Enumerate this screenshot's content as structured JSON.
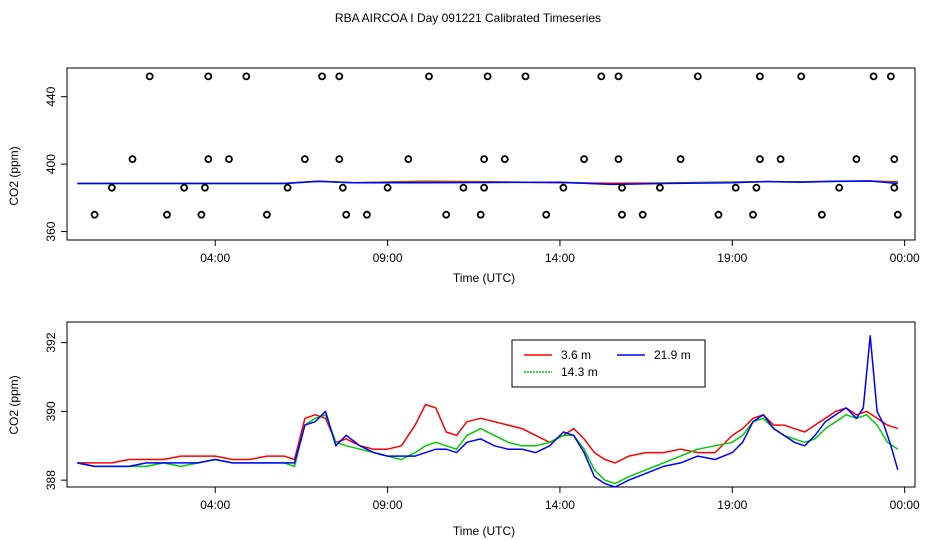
{
  "title": "RBA AIRCOA I  Day 091221  Calibrated Timeseries",
  "chart_data": [
    {
      "type": "scatter",
      "title": "",
      "xlabel": "Time (UTC)",
      "ylabel": "CO2 (ppm)",
      "xlim": [
        -0.3,
        24.3
      ],
      "ylim": [
        355,
        457
      ],
      "xticks": [
        {
          "v": 4,
          "label": "04:00"
        },
        {
          "v": 9,
          "label": "09:00"
        },
        {
          "v": 14,
          "label": "14:00"
        },
        {
          "v": 19,
          "label": "19:00"
        },
        {
          "v": 24,
          "label": "00:00"
        }
      ],
      "yticks": [
        {
          "v": 360,
          "label": "360"
        },
        {
          "v": 400,
          "label": "400"
        },
        {
          "v": 440,
          "label": "440"
        }
      ],
      "calibration_points": [
        [
          0.5,
          370
        ],
        [
          1.0,
          386
        ],
        [
          1.6,
          403
        ],
        [
          2.1,
          452
        ],
        [
          2.6,
          370
        ],
        [
          3.1,
          386
        ],
        [
          3.6,
          370
        ],
        [
          3.7,
          386
        ],
        [
          3.8,
          403
        ],
        [
          3.8,
          452
        ],
        [
          4.4,
          403
        ],
        [
          4.9,
          452
        ],
        [
          5.5,
          370
        ],
        [
          6.1,
          386
        ],
        [
          6.6,
          403
        ],
        [
          7.1,
          452
        ],
        [
          7.6,
          403
        ],
        [
          7.6,
          452
        ],
        [
          7.7,
          386
        ],
        [
          7.8,
          370
        ],
        [
          8.4,
          370
        ],
        [
          9.0,
          386
        ],
        [
          9.6,
          403
        ],
        [
          10.2,
          452
        ],
        [
          10.7,
          370
        ],
        [
          11.2,
          386
        ],
        [
          11.7,
          370
        ],
        [
          11.8,
          386
        ],
        [
          11.8,
          403
        ],
        [
          11.9,
          452
        ],
        [
          12.4,
          403
        ],
        [
          13.0,
          452
        ],
        [
          13.6,
          370
        ],
        [
          14.1,
          386
        ],
        [
          14.7,
          403
        ],
        [
          15.2,
          452
        ],
        [
          15.7,
          452
        ],
        [
          15.7,
          403
        ],
        [
          15.8,
          386
        ],
        [
          15.8,
          370
        ],
        [
          16.4,
          370
        ],
        [
          16.9,
          386
        ],
        [
          17.5,
          403
        ],
        [
          18.0,
          452
        ],
        [
          18.6,
          370
        ],
        [
          19.1,
          386
        ],
        [
          19.6,
          370
        ],
        [
          19.7,
          386
        ],
        [
          19.8,
          403
        ],
        [
          19.8,
          452
        ],
        [
          20.4,
          403
        ],
        [
          21.0,
          452
        ],
        [
          21.6,
          370
        ],
        [
          22.1,
          386
        ],
        [
          22.6,
          403
        ],
        [
          23.1,
          452
        ],
        [
          23.6,
          452
        ],
        [
          23.7,
          403
        ],
        [
          23.7,
          386
        ],
        [
          23.8,
          370
        ]
      ],
      "series": [
        {
          "name": "3.6 m",
          "color": "#ff0000",
          "x": [
            0,
            6,
            7,
            8,
            10,
            12,
            14,
            15.5,
            17,
            19,
            20,
            21,
            22,
            23,
            23.8
          ],
          "values": [
            388.6,
            388.6,
            389.8,
            389.0,
            389.8,
            389.6,
            389.0,
            388.6,
            388.8,
            389.4,
            389.6,
            389.5,
            389.8,
            390.0,
            389.5
          ]
        },
        {
          "name": "14.3 m",
          "color": "#00cc00",
          "x": [
            0,
            6,
            7,
            8,
            10,
            12,
            14,
            15.5,
            17,
            19,
            20,
            21,
            22,
            23,
            23.8
          ],
          "values": [
            388.5,
            388.5,
            389.7,
            388.9,
            389.3,
            389.3,
            389.2,
            388.0,
            388.6,
            389.2,
            389.6,
            389.4,
            389.7,
            389.9,
            389.0
          ]
        },
        {
          "name": "21.9 m",
          "color": "#0000ff",
          "x": [
            0,
            6,
            7,
            8,
            10,
            12,
            14,
            15.5,
            17,
            19,
            20,
            21,
            22,
            23,
            23.8
          ],
          "values": [
            388.5,
            388.5,
            389.8,
            388.9,
            389.0,
            389.1,
            389.3,
            388.0,
            388.5,
            389.0,
            389.7,
            389.2,
            389.8,
            390.0,
            388.5
          ]
        }
      ]
    },
    {
      "type": "line",
      "title": "",
      "xlabel": "Time (UTC)",
      "ylabel": "CO2 (ppm)",
      "xlim": [
        -0.3,
        24.3
      ],
      "ylim": [
        387.8,
        392.6
      ],
      "xticks": [
        {
          "v": 4,
          "label": "04:00"
        },
        {
          "v": 9,
          "label": "09:00"
        },
        {
          "v": 14,
          "label": "14:00"
        },
        {
          "v": 19,
          "label": "19:00"
        },
        {
          "v": 24,
          "label": "00:00"
        }
      ],
      "yticks": [
        {
          "v": 388,
          "label": "388"
        },
        {
          "v": 390,
          "label": "390"
        },
        {
          "v": 392,
          "label": "392"
        }
      ],
      "legend": {
        "position": "top-center",
        "entries": [
          "3.6 m",
          "21.9 m",
          "14.3 m"
        ]
      },
      "series": [
        {
          "name": "3.6 m",
          "color": "#ff0000",
          "x": [
            0.0,
            0.5,
            1.0,
            1.5,
            2.0,
            2.5,
            3.0,
            3.5,
            4.0,
            4.5,
            5.0,
            5.5,
            6.0,
            6.3,
            6.6,
            6.9,
            7.2,
            7.5,
            7.8,
            8.2,
            8.6,
            9.0,
            9.4,
            9.8,
            10.1,
            10.4,
            10.7,
            11.0,
            11.3,
            11.7,
            12.1,
            12.5,
            12.9,
            13.3,
            13.7,
            14.1,
            14.4,
            14.7,
            15.0,
            15.3,
            15.6,
            16.0,
            16.5,
            17.0,
            17.5,
            18.0,
            18.5,
            19.0,
            19.3,
            19.6,
            19.9,
            20.2,
            20.5,
            20.8,
            21.1,
            21.4,
            21.7,
            22.0,
            22.3,
            22.6,
            22.9,
            23.2,
            23.5,
            23.8
          ],
          "values": [
            388.5,
            388.5,
            388.5,
            388.6,
            388.6,
            388.6,
            388.7,
            388.7,
            388.7,
            388.6,
            388.6,
            388.7,
            388.7,
            388.6,
            389.8,
            389.9,
            389.8,
            389.1,
            389.2,
            389.0,
            388.9,
            388.9,
            389.0,
            389.6,
            390.2,
            390.1,
            389.4,
            389.3,
            389.7,
            389.8,
            389.7,
            389.6,
            389.5,
            389.3,
            389.1,
            389.3,
            389.5,
            389.2,
            388.8,
            388.6,
            388.5,
            388.7,
            388.8,
            388.8,
            388.9,
            388.8,
            388.8,
            389.3,
            389.5,
            389.8,
            389.9,
            389.6,
            389.6,
            389.5,
            389.4,
            389.6,
            389.8,
            390.0,
            390.1,
            389.9,
            390.0,
            389.8,
            389.6,
            389.5
          ]
        },
        {
          "name": "14.3 m",
          "color": "#00cc00",
          "x": [
            0.0,
            0.5,
            1.0,
            1.5,
            2.0,
            2.5,
            3.0,
            3.5,
            4.0,
            4.5,
            5.0,
            5.5,
            6.0,
            6.3,
            6.6,
            6.9,
            7.2,
            7.5,
            7.8,
            8.2,
            8.6,
            9.0,
            9.4,
            9.8,
            10.1,
            10.4,
            10.7,
            11.0,
            11.3,
            11.7,
            12.1,
            12.5,
            12.9,
            13.3,
            13.7,
            14.1,
            14.4,
            14.7,
            15.0,
            15.3,
            15.6,
            16.0,
            16.5,
            17.0,
            17.5,
            18.0,
            18.5,
            19.0,
            19.3,
            19.6,
            19.9,
            20.2,
            20.5,
            20.8,
            21.1,
            21.4,
            21.7,
            22.0,
            22.3,
            22.6,
            22.9,
            23.2,
            23.5,
            23.8
          ],
          "values": [
            388.5,
            388.4,
            388.4,
            388.4,
            388.4,
            388.5,
            388.4,
            388.5,
            388.6,
            388.5,
            388.5,
            388.5,
            388.5,
            388.4,
            389.6,
            389.8,
            389.9,
            389.1,
            389.0,
            388.9,
            388.8,
            388.7,
            388.6,
            388.8,
            389.0,
            389.1,
            389.0,
            388.9,
            389.3,
            389.5,
            389.3,
            389.1,
            389.0,
            389.0,
            389.1,
            389.3,
            389.3,
            388.9,
            388.3,
            388.0,
            387.9,
            388.1,
            388.3,
            388.5,
            388.7,
            388.9,
            389.0,
            389.1,
            389.3,
            389.7,
            389.8,
            389.5,
            389.3,
            389.2,
            389.1,
            389.2,
            389.5,
            389.7,
            389.9,
            389.8,
            389.9,
            389.6,
            389.1,
            388.9
          ]
        },
        {
          "name": "21.9 m",
          "color": "#0000ff",
          "x": [
            0.0,
            0.5,
            1.0,
            1.5,
            2.0,
            2.5,
            3.0,
            3.5,
            4.0,
            4.5,
            5.0,
            5.5,
            6.0,
            6.3,
            6.6,
            6.9,
            7.2,
            7.5,
            7.8,
            8.2,
            8.6,
            9.0,
            9.4,
            9.8,
            10.1,
            10.4,
            10.7,
            11.0,
            11.3,
            11.7,
            12.1,
            12.5,
            12.9,
            13.3,
            13.7,
            14.1,
            14.4,
            14.7,
            15.0,
            15.3,
            15.6,
            16.0,
            16.5,
            17.0,
            17.5,
            18.0,
            18.5,
            19.0,
            19.3,
            19.6,
            19.9,
            20.2,
            20.5,
            20.8,
            21.1,
            21.4,
            21.7,
            22.0,
            22.3,
            22.6,
            22.8,
            23.0,
            23.2,
            23.4,
            23.6,
            23.8
          ],
          "values": [
            388.5,
            388.4,
            388.4,
            388.4,
            388.5,
            388.5,
            388.5,
            388.5,
            388.6,
            388.5,
            388.5,
            388.5,
            388.5,
            388.5,
            389.6,
            389.7,
            390.0,
            389.0,
            389.3,
            389.0,
            388.8,
            388.7,
            388.7,
            388.7,
            388.8,
            388.9,
            388.9,
            388.8,
            389.1,
            389.2,
            389.0,
            388.9,
            388.9,
            388.8,
            389.0,
            389.4,
            389.3,
            388.8,
            388.1,
            387.9,
            387.8,
            388.0,
            388.2,
            388.4,
            388.5,
            388.7,
            388.6,
            388.8,
            389.1,
            389.7,
            389.9,
            389.5,
            389.3,
            389.1,
            389.0,
            389.3,
            389.7,
            389.9,
            390.1,
            389.8,
            390.1,
            392.2,
            390.0,
            389.6,
            389.0,
            388.3
          ]
        }
      ]
    }
  ]
}
